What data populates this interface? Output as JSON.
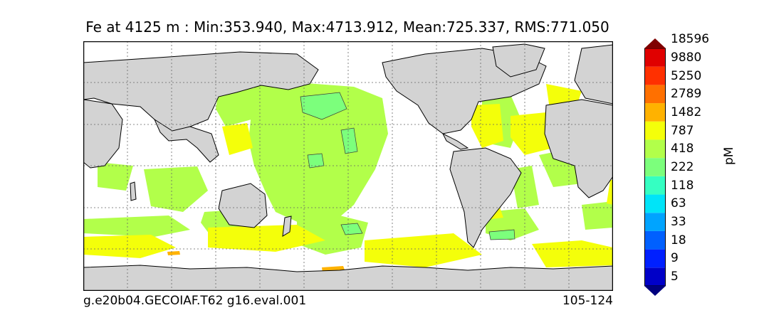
{
  "title": "Fe at 4125 m : Min:353.940, Max:4713.912, Mean:725.337, RMS:771.050",
  "footer": {
    "case_name": "g.e20b04.GECOIAF.T62 g16.eval.001",
    "years": "105-124"
  },
  "colorbar": {
    "unit": "pM",
    "tick_labels": [
      "5",
      "9",
      "18",
      "33",
      "63",
      "118",
      "222",
      "418",
      "787",
      "1482",
      "2789",
      "5250",
      "9880",
      "18596"
    ],
    "band_colors": [
      "#00007f",
      "#0000c8",
      "#0020ff",
      "#0060ff",
      "#00a4ff",
      "#00e4f8",
      "#35ffc2",
      "#7cff7c",
      "#b2ff4a",
      "#f4ff0a",
      "#ffb200",
      "#ff7000",
      "#ff3000",
      "#e00000",
      "#7f0000"
    ],
    "extend": "both"
  },
  "map": {
    "projection": "cylindrical",
    "land_color": "#d3d3d3",
    "ocean_blank_color": "#ffffff",
    "gridlines": "dotted",
    "contour_color": "#3a3a3a"
  }
}
